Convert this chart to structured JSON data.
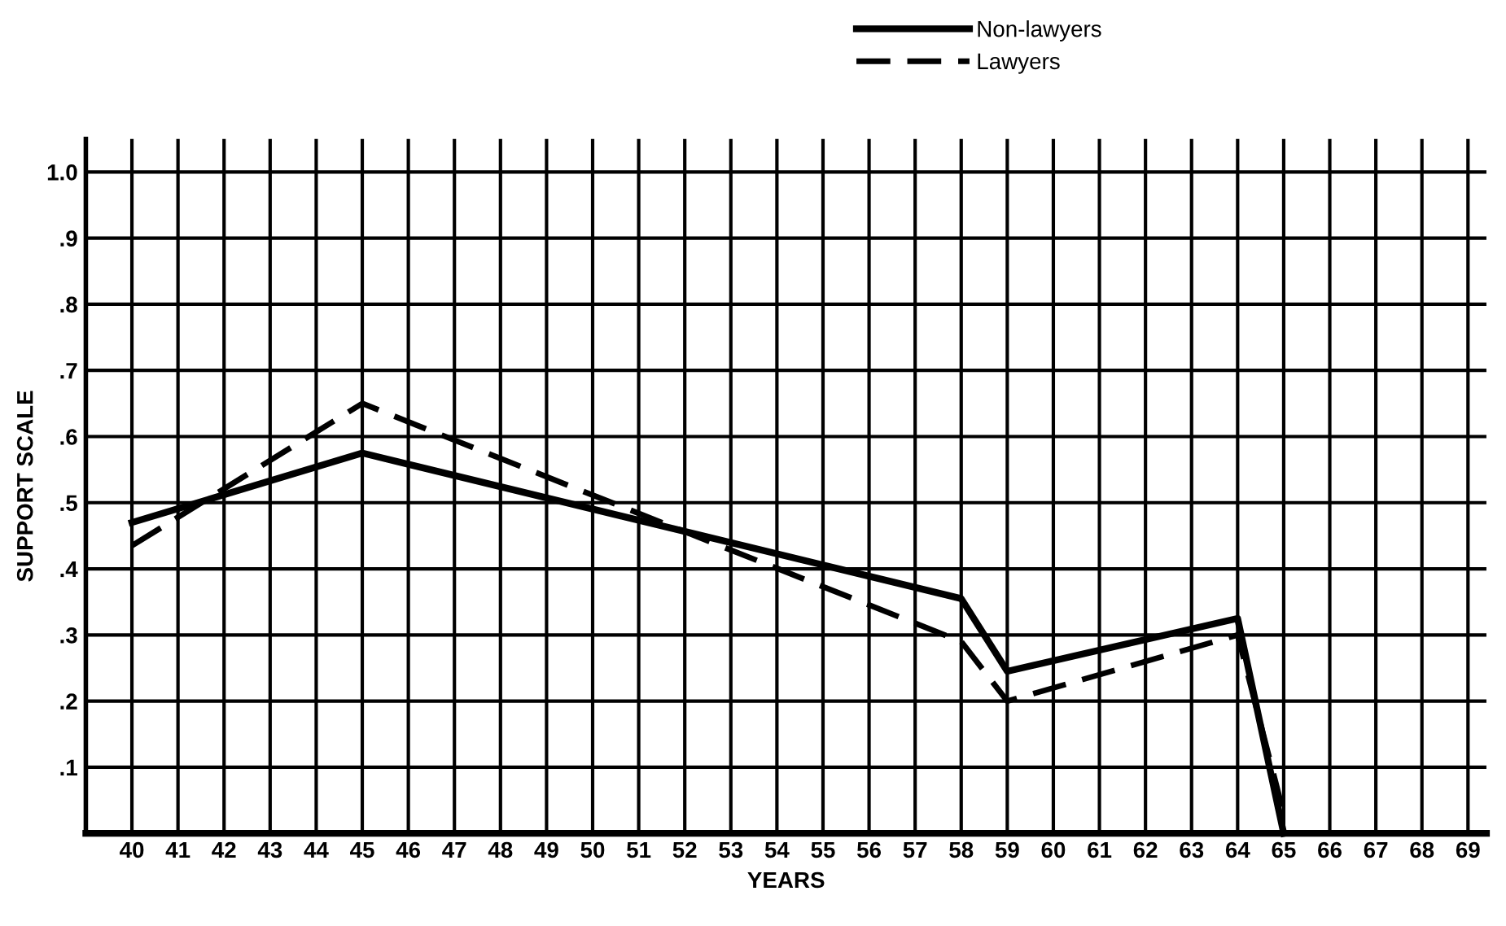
{
  "chart_data": {
    "type": "line",
    "xlabel": "YEARS",
    "ylabel": "SUPPORT SCALE",
    "series": [
      {
        "name": "Non-lawyers",
        "color": "#000000",
        "line_style": "solid",
        "x": [
          40,
          45,
          58,
          59,
          64,
          65
        ],
        "values": [
          0.47,
          0.575,
          0.355,
          0.245,
          0.325,
          0.0
        ]
      },
      {
        "name": "Lawyers",
        "color": "#000000",
        "line_style": "dashed",
        "x": [
          40,
          45,
          58,
          59,
          64,
          65
        ],
        "values": [
          0.435,
          0.65,
          0.29,
          0.2,
          0.3,
          0.03
        ]
      }
    ],
    "xlim": [
      39,
      69.4
    ],
    "xticks": [
      40,
      41,
      42,
      43,
      44,
      45,
      46,
      47,
      48,
      49,
      50,
      51,
      52,
      53,
      54,
      55,
      56,
      57,
      58,
      59,
      60,
      61,
      62,
      63,
      64,
      65,
      66,
      67,
      68,
      69
    ],
    "ylim": [
      0,
      1.05
    ],
    "yticks": [
      {
        "value": 0.1,
        "label": ".1"
      },
      {
        "value": 0.2,
        "label": ".2"
      },
      {
        "value": 0.3,
        "label": ".3"
      },
      {
        "value": 0.4,
        "label": ".4"
      },
      {
        "value": 0.5,
        "label": ".5"
      },
      {
        "value": 0.6,
        "label": ".6"
      },
      {
        "value": 0.7,
        "label": ".7"
      },
      {
        "value": 0.8,
        "label": ".8"
      },
      {
        "value": 0.9,
        "label": ".9"
      },
      {
        "value": 1.0,
        "label": "1.0"
      }
    ],
    "grid": true,
    "legend": "top right",
    "marker": "none"
  }
}
